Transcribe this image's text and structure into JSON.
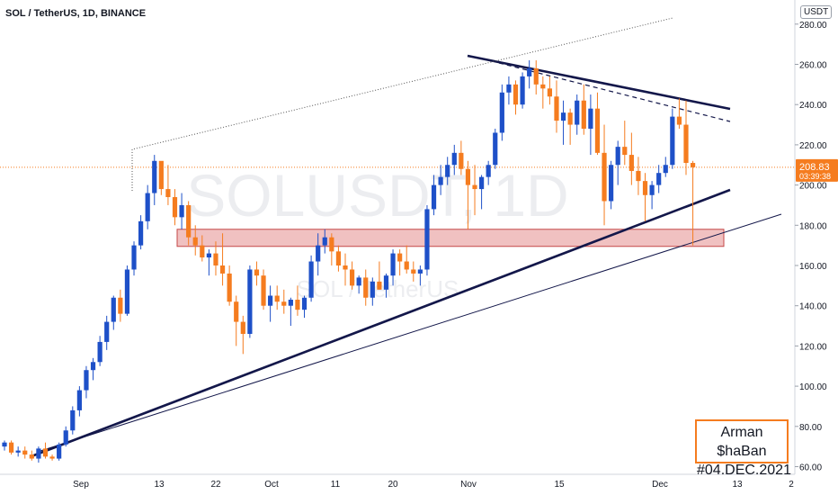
{
  "header": {
    "title": "SOL / TetherUS, 1D, BINANCE",
    "currency": "USDT"
  },
  "watermark": {
    "symbol": "SOLUSDT, 1D",
    "name": "SOL / TetherUS"
  },
  "signature": {
    "line1": "Arman $haBan",
    "line2": "#04.DEC.2021"
  },
  "price_tag": {
    "price": "208.83",
    "countdown": "03:39:38"
  },
  "colors": {
    "up": "#1e50c8",
    "down": "#f57c1f",
    "line": "#13174a",
    "zone_fill": "#e8a0a0",
    "zone_border": "#c44848"
  },
  "chart_data": {
    "type": "candlestick",
    "y_ticks": [
      "60.00",
      "80.00",
      "100.00",
      "120.00",
      "140.00",
      "160.00",
      "180.00",
      "200.00",
      "220.00",
      "240.00",
      "260.00",
      "280.00"
    ],
    "x_ticks": [
      "Sep",
      "13",
      "22",
      "Oct",
      "11",
      "20",
      "Nov",
      "15",
      "Dec",
      "13",
      "2"
    ],
    "ylim": [
      58,
      285
    ],
    "last_price": 208.83,
    "candles": [
      [
        70,
        73,
        68,
        72
      ],
      [
        72,
        73,
        66,
        67
      ],
      [
        67,
        70,
        65,
        68
      ],
      [
        68,
        70,
        64,
        66
      ],
      [
        66,
        68,
        63,
        64
      ],
      [
        64,
        70,
        62,
        69
      ],
      [
        69,
        72,
        64,
        65
      ],
      [
        65,
        66,
        63,
        64
      ],
      [
        64,
        72,
        63,
        71
      ],
      [
        71,
        80,
        70,
        78
      ],
      [
        78,
        90,
        76,
        88
      ],
      [
        88,
        100,
        85,
        98
      ],
      [
        98,
        110,
        94,
        108
      ],
      [
        108,
        114,
        103,
        112
      ],
      [
        112,
        125,
        110,
        122
      ],
      [
        122,
        135,
        118,
        132
      ],
      [
        132,
        145,
        128,
        144
      ],
      [
        144,
        148,
        132,
        136
      ],
      [
        136,
        160,
        135,
        158
      ],
      [
        158,
        172,
        155,
        170
      ],
      [
        170,
        185,
        168,
        182
      ],
      [
        182,
        200,
        178,
        196
      ],
      [
        196,
        215,
        190,
        212
      ],
      [
        212,
        210,
        195,
        198
      ],
      [
        198,
        210,
        190,
        194
      ],
      [
        194,
        198,
        180,
        184
      ],
      [
        184,
        196,
        178,
        190
      ],
      [
        190,
        192,
        170,
        174
      ],
      [
        174,
        180,
        165,
        170
      ],
      [
        170,
        175,
        162,
        164
      ],
      [
        164,
        168,
        155,
        166
      ],
      [
        166,
        172,
        155,
        160
      ],
      [
        160,
        176,
        150,
        156
      ],
      [
        156,
        160,
        140,
        142
      ],
      [
        142,
        145,
        120,
        132
      ],
      [
        132,
        135,
        116,
        126
      ],
      [
        126,
        160,
        124,
        158
      ],
      [
        158,
        162,
        150,
        155
      ],
      [
        155,
        158,
        138,
        140
      ],
      [
        140,
        150,
        132,
        145
      ],
      [
        145,
        150,
        138,
        142
      ],
      [
        142,
        148,
        136,
        140
      ],
      [
        140,
        144,
        130,
        143
      ],
      [
        143,
        150,
        135,
        138
      ],
      [
        138,
        145,
        134,
        144
      ],
      [
        144,
        165,
        142,
        162
      ],
      [
        162,
        176,
        155,
        170
      ],
      [
        170,
        178,
        166,
        174
      ],
      [
        174,
        176,
        160,
        167
      ],
      [
        167,
        170,
        157,
        160
      ],
      [
        160,
        166,
        150,
        158
      ],
      [
        158,
        162,
        148,
        150
      ],
      [
        150,
        155,
        146,
        154
      ],
      [
        154,
        158,
        140,
        144
      ],
      [
        144,
        154,
        140,
        152
      ],
      [
        152,
        162,
        148,
        148
      ],
      [
        148,
        156,
        144,
        155
      ],
      [
        155,
        168,
        150,
        166
      ],
      [
        166,
        168,
        155,
        162
      ],
      [
        162,
        170,
        156,
        158
      ],
      [
        158,
        162,
        152,
        156
      ],
      [
        156,
        160,
        150,
        158
      ],
      [
        158,
        190,
        155,
        188
      ],
      [
        188,
        205,
        185,
        200
      ],
      [
        200,
        210,
        195,
        204
      ],
      [
        204,
        214,
        200,
        210
      ],
      [
        210,
        220,
        205,
        216
      ],
      [
        216,
        222,
        205,
        208
      ],
      [
        208,
        212,
        178,
        200
      ],
      [
        200,
        210,
        185,
        198
      ],
      [
        198,
        205,
        188,
        204
      ],
      [
        204,
        212,
        200,
        210
      ],
      [
        210,
        228,
        208,
        226
      ],
      [
        226,
        250,
        222,
        246
      ],
      [
        246,
        254,
        240,
        250
      ],
      [
        250,
        252,
        235,
        240
      ],
      [
        240,
        256,
        238,
        254
      ],
      [
        254,
        262,
        248,
        258
      ],
      [
        258,
        262,
        245,
        250
      ],
      [
        250,
        254,
        238,
        248
      ],
      [
        248,
        254,
        240,
        244
      ],
      [
        244,
        252,
        226,
        232
      ],
      [
        232,
        242,
        220,
        236
      ],
      [
        236,
        238,
        220,
        230
      ],
      [
        230,
        245,
        225,
        242
      ],
      [
        242,
        250,
        225,
        228
      ],
      [
        228,
        245,
        215,
        238
      ],
      [
        238,
        246,
        215,
        216
      ],
      [
        216,
        230,
        180,
        192
      ],
      [
        192,
        212,
        188,
        210
      ],
      [
        210,
        222,
        200,
        219
      ],
      [
        219,
        232,
        210,
        215
      ],
      [
        215,
        226,
        200,
        207
      ],
      [
        207,
        214,
        195,
        202
      ],
      [
        202,
        206,
        182,
        195
      ],
      [
        195,
        202,
        188,
        200
      ],
      [
        200,
        210,
        196,
        206
      ],
      [
        206,
        214,
        204,
        210
      ],
      [
        210,
        238,
        208,
        234
      ],
      [
        234,
        243,
        228,
        230
      ],
      [
        230,
        242,
        205,
        211
      ],
      [
        211,
        212,
        170,
        208.83
      ]
    ]
  }
}
